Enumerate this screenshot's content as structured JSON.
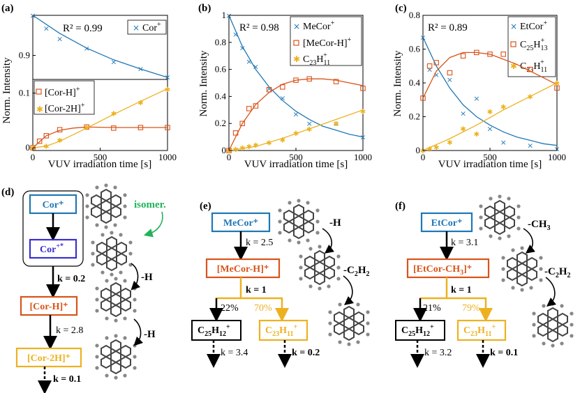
{
  "colors": {
    "blue": "#1f77b4",
    "orange": "#d95319",
    "yellow": "#edb120",
    "purple": "#3a2fd0",
    "green": "#22b35a",
    "black": "#000000"
  },
  "chart_data": [
    {
      "panel": "(a)",
      "type": "scatter",
      "x_label": "VUV irradiation time [s]",
      "y_label": "Norm. Intensity",
      "r2": "R² = 0.99",
      "top": {
        "ylim": [
          0.84,
          1.0
        ],
        "yticks": [
          0.9
        ],
        "series": [
          {
            "name": "Cor⁺",
            "label_main": "Cor",
            "label_sup": "+",
            "marker": "x",
            "color": "blue",
            "points": [
              [
                0,
                1.0
              ],
              [
                100,
                0.968
              ],
              [
                200,
                0.942
              ],
              [
                400,
                0.918
              ],
              [
                600,
                0.884
              ],
              [
                800,
                0.867
              ],
              [
                1000,
                0.846
              ]
            ],
            "fit": [
              [
                0,
                1.0
              ],
              [
                200,
                0.955
              ],
              [
                400,
                0.918
              ],
              [
                600,
                0.889
              ],
              [
                800,
                0.866
              ],
              [
                1000,
                0.845
              ]
            ]
          }
        ]
      },
      "bottom": {
        "ylim": [
          -0.005,
          0.125
        ],
        "yticks": [
          0,
          0.1
        ],
        "series": [
          {
            "name": "[Cor-H]⁺",
            "label_main": "[Cor-H]",
            "label_sup": "+",
            "marker": "square",
            "color": "orange",
            "points": [
              [
                0,
                0.0
              ],
              [
                50,
                0.012
              ],
              [
                100,
                0.022
              ],
              [
                200,
                0.033
              ],
              [
                400,
                0.038
              ],
              [
                600,
                0.036
              ],
              [
                800,
                0.037
              ],
              [
                1000,
                0.037
              ]
            ],
            "fit": [
              [
                0,
                0.0
              ],
              [
                100,
                0.022
              ],
              [
                200,
                0.032
              ],
              [
                300,
                0.036
              ],
              [
                400,
                0.038
              ],
              [
                600,
                0.037
              ],
              [
                800,
                0.037
              ],
              [
                1000,
                0.037
              ]
            ]
          },
          {
            "name": "[Cor-2H]⁺",
            "label_main": "[Cor-2H]",
            "label_sup": "+",
            "marker": "star",
            "color": "yellow",
            "points": [
              [
                0,
                0.0
              ],
              [
                100,
                0.003
              ],
              [
                200,
                0.014
              ],
              [
                400,
                0.038
              ],
              [
                600,
                0.063
              ],
              [
                800,
                0.083
              ],
              [
                1000,
                0.107
              ]
            ],
            "fit": [
              [
                0,
                0.0
              ],
              [
                100,
                0.003
              ],
              [
                200,
                0.012
              ],
              [
                400,
                0.036
              ],
              [
                600,
                0.061
              ],
              [
                800,
                0.085
              ],
              [
                1000,
                0.108
              ]
            ]
          }
        ]
      },
      "xlim": [
        0,
        1000
      ],
      "xticks": [
        0,
        500,
        1000
      ],
      "legend_top": [
        "Cor+"
      ],
      "legend_bottom": [
        "[Cor-H]+",
        "[Cor-2H]+"
      ]
    },
    {
      "panel": "(b)",
      "type": "scatter",
      "x_label": "VUV irradiation time [s]",
      "y_label": "Norm. Intensity",
      "r2": "R² = 0.98",
      "ylim": [
        0,
        1.0
      ],
      "yticks": [
        0,
        0.2,
        0.4,
        0.6,
        0.8,
        1
      ],
      "xlim": [
        0,
        1000
      ],
      "xticks": [
        0,
        500,
        1000
      ],
      "series": [
        {
          "name": "MeCor⁺",
          "label_main": "MeCor",
          "label_sup": "+",
          "marker": "x",
          "color": "blue",
          "points": [
            [
              0,
              1.0
            ],
            [
              50,
              0.86
            ],
            [
              100,
              0.76
            ],
            [
              150,
              0.66
            ],
            [
              200,
              0.62
            ],
            [
              300,
              0.46
            ],
            [
              400,
              0.39
            ],
            [
              500,
              0.27
            ],
            [
              600,
              0.2
            ],
            [
              800,
              0.2
            ],
            [
              1000,
              0.1
            ]
          ],
          "fit": [
            [
              0,
              1.0
            ],
            [
              100,
              0.77
            ],
            [
              200,
              0.6
            ],
            [
              300,
              0.47
            ],
            [
              400,
              0.37
            ],
            [
              500,
              0.29
            ],
            [
              600,
              0.23
            ],
            [
              700,
              0.18
            ],
            [
              800,
              0.15
            ],
            [
              900,
              0.12
            ],
            [
              1000,
              0.1
            ]
          ]
        },
        {
          "name": "[MeCor-H]⁺",
          "label_main": "[MeCor-H]",
          "label_sup": "+",
          "marker": "square",
          "color": "orange",
          "points": [
            [
              0,
              0.0
            ],
            [
              50,
              0.13
            ],
            [
              100,
              0.2
            ],
            [
              150,
              0.31
            ],
            [
              200,
              0.33
            ],
            [
              300,
              0.45
            ],
            [
              400,
              0.47
            ],
            [
              500,
              0.52
            ],
            [
              600,
              0.53
            ],
            [
              800,
              0.51
            ],
            [
              1000,
              0.46
            ]
          ],
          "fit": [
            [
              0,
              0.0
            ],
            [
              100,
              0.2
            ],
            [
              200,
              0.34
            ],
            [
              300,
              0.43
            ],
            [
              400,
              0.49
            ],
            [
              500,
              0.52
            ],
            [
              600,
              0.53
            ],
            [
              700,
              0.53
            ],
            [
              800,
              0.52
            ],
            [
              900,
              0.5
            ],
            [
              1000,
              0.48
            ]
          ]
        },
        {
          "name": "C₂₃H₁₁⁺",
          "label_main": "C",
          "label_sub1": "23",
          "label_mid": "H",
          "label_sub2": "11",
          "label_sup": "+",
          "marker": "star",
          "color": "yellow",
          "points": [
            [
              0,
              0.0
            ],
            [
              50,
              0.01
            ],
            [
              100,
              0.02
            ],
            [
              150,
              0.03
            ],
            [
              200,
              0.04
            ],
            [
              300,
              0.06
            ],
            [
              400,
              0.08
            ],
            [
              500,
              0.13
            ],
            [
              600,
              0.16
            ],
            [
              800,
              0.2
            ],
            [
              1000,
              0.29
            ]
          ],
          "fit": [
            [
              0,
              0.0
            ],
            [
              200,
              0.03
            ],
            [
              400,
              0.09
            ],
            [
              600,
              0.16
            ],
            [
              800,
              0.23
            ],
            [
              1000,
              0.3
            ]
          ]
        }
      ]
    },
    {
      "panel": "(c)",
      "type": "scatter",
      "x_label": "VUV irradiation time [s]",
      "y_label": "Norm. Intensity",
      "r2": "R² = 0.89",
      "ylim": [
        0,
        0.8
      ],
      "yticks": [
        0,
        0.2,
        0.4,
        0.6,
        0.8
      ],
      "xlim": [
        0,
        1000
      ],
      "xticks": [
        0,
        500,
        1000
      ],
      "series": [
        {
          "name": "EtCor⁺",
          "label_main": "EtCor",
          "label_sup": "+",
          "marker": "x",
          "color": "blue",
          "points": [
            [
              0,
              0.67
            ],
            [
              50,
              0.48
            ],
            [
              100,
              0.45
            ],
            [
              200,
              0.42
            ],
            [
              300,
              0.22
            ],
            [
              400,
              0.31
            ],
            [
              500,
              0.13
            ],
            [
              600,
              0.05
            ],
            [
              800,
              0.03
            ],
            [
              1000,
              0.01
            ]
          ],
          "fit": [
            [
              0,
              0.67
            ],
            [
              100,
              0.5
            ],
            [
              200,
              0.37
            ],
            [
              300,
              0.27
            ],
            [
              400,
              0.2
            ],
            [
              500,
              0.15
            ],
            [
              600,
              0.11
            ],
            [
              700,
              0.08
            ],
            [
              800,
              0.06
            ],
            [
              900,
              0.04
            ],
            [
              1000,
              0.03
            ]
          ]
        },
        {
          "name": "C₂₅H₁₃⁺",
          "label_main": "C",
          "label_sub1": "25",
          "label_mid": "H",
          "label_sub2": "13",
          "label_sup": "+",
          "marker": "square",
          "color": "orange",
          "points": [
            [
              0,
              0.31
            ],
            [
              50,
              0.5
            ],
            [
              100,
              0.52
            ],
            [
              200,
              0.46
            ],
            [
              300,
              0.56
            ],
            [
              400,
              0.58
            ],
            [
              500,
              0.57
            ],
            [
              600,
              0.57
            ],
            [
              800,
              0.48
            ],
            [
              1000,
              0.37
            ]
          ],
          "fit": [
            [
              0,
              0.31
            ],
            [
              100,
              0.47
            ],
            [
              200,
              0.55
            ],
            [
              300,
              0.58
            ],
            [
              400,
              0.58
            ],
            [
              500,
              0.57
            ],
            [
              600,
              0.54
            ],
            [
              700,
              0.51
            ],
            [
              800,
              0.47
            ],
            [
              900,
              0.43
            ],
            [
              1000,
              0.39
            ]
          ]
        },
        {
          "name": "C₂₃H₁₁⁺",
          "label_main": "C",
          "label_sub1": "23",
          "label_mid": "H",
          "label_sub2": "11",
          "label_sup": "+",
          "marker": "star",
          "color": "yellow",
          "points": [
            [
              0,
              0.0
            ],
            [
              50,
              0.01
            ],
            [
              100,
              0.02
            ],
            [
              200,
              0.05
            ],
            [
              300,
              0.13
            ],
            [
              400,
              0.1
            ],
            [
              500,
              0.23
            ],
            [
              600,
              0.26
            ],
            [
              800,
              0.32
            ],
            [
              1000,
              0.4
            ]
          ],
          "fit": [
            [
              0,
              0.0
            ],
            [
              200,
              0.07
            ],
            [
              400,
              0.15
            ],
            [
              600,
              0.24
            ],
            [
              800,
              0.32
            ],
            [
              1000,
              0.4
            ]
          ]
        }
      ]
    }
  ],
  "schemes": {
    "d": {
      "label": "(d)",
      "cor": "Cor⁺",
      "cor_star_main": "Cor",
      "cor_star_sup": "+*",
      "cor_h": "[Cor-H]⁺",
      "cor_2h": "[Cor-2H]⁺",
      "isomer": "isomer.",
      "k1": "k = 0.2",
      "k2": "k = 2.8",
      "k3": "k = 0.1",
      "loss1": "-H",
      "loss2": "-H"
    },
    "e": {
      "label": "(e)",
      "mecor": "MeCor⁺",
      "mecor_h": "[MeCor-H]⁺",
      "c25_main": "C",
      "c25_sub1": "25",
      "c25_mid": "H",
      "c25_sub2": "12",
      "c25_sup": "+",
      "c23_main": "C",
      "c23_sub1": "23",
      "c23_mid": "H",
      "c23_sub2": "11",
      "c23_sup": "+",
      "k1": "k = 2.5",
      "k2": "k = 1",
      "k3": "k = 3.4",
      "k4": "k = 0.2",
      "p1": "22%",
      "p2": "70%",
      "loss1": "-H",
      "loss2_main": "-C",
      "loss2_sub": "2",
      "loss2_end": "H",
      "loss2_sub2": "2"
    },
    "f": {
      "label": "(f)",
      "etcor": "EtCor⁺",
      "etcor_main": "[EtCor-CH",
      "etcor_sub": "3",
      "etcor_end": "]⁺",
      "c25_main": "C",
      "c25_sub1": "25",
      "c25_mid": "H",
      "c25_sub2": "12",
      "c25_sup": "+",
      "c23_main": "C",
      "c23_sub1": "23",
      "c23_mid": "H",
      "c23_sub2": "11",
      "c23_sup": "+",
      "k1": "k = 3.1",
      "k2": "k = 1",
      "k3": "k = 3.2",
      "k4": "k = 0.1",
      "p1": "21%",
      "p2": "79%",
      "loss1_main": "-CH",
      "loss1_sub": "3",
      "loss2_main": "-C",
      "loss2_sub": "2",
      "loss2_end": "H",
      "loss2_sub2": "2"
    }
  }
}
